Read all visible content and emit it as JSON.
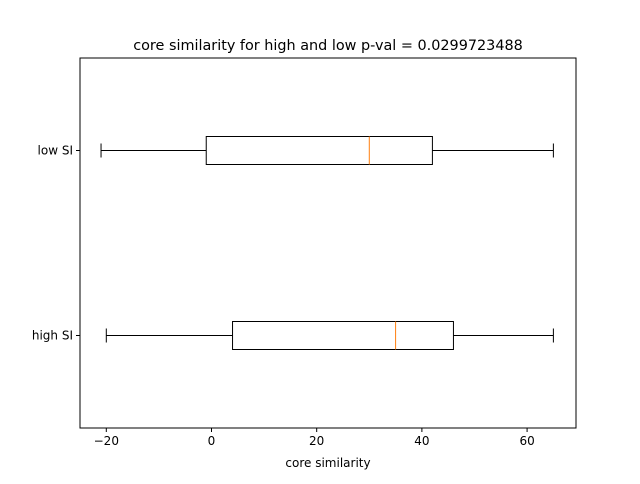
{
  "chart_data": {
    "type": "boxplot",
    "orientation": "horizontal",
    "title": "core similarity for high and low p-val = 0.0299723488",
    "xlabel": "core similarity",
    "ylabel": "",
    "xlim": [
      -25,
      69.3
    ],
    "x_ticks": [
      -20,
      0,
      20,
      40,
      60
    ],
    "x_tick_labels": [
      "−20",
      "0",
      "20",
      "40",
      "60"
    ],
    "categories": [
      "high SI",
      "low SI"
    ],
    "boxes": [
      {
        "category": "high SI",
        "whisker_low": -20,
        "q1": 4,
        "median": 35,
        "q3": 46,
        "whisker_high": 65
      },
      {
        "category": "low SI",
        "whisker_low": -21,
        "q1": -1,
        "median": 30,
        "q3": 42,
        "whisker_high": 65
      }
    ],
    "grid": false,
    "colors": {
      "box": "#000000",
      "median": "#ff7f0e",
      "axes": "#000000"
    }
  }
}
